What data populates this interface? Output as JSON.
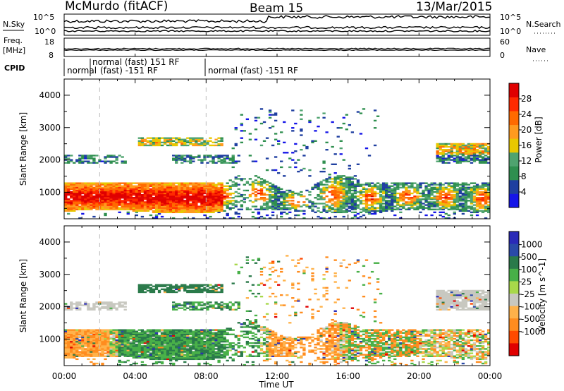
{
  "header": {
    "station": "McMurdo (fitACF)",
    "beam": "Beam 15",
    "date": "13/Mar/2015"
  },
  "params": {
    "nsky_label": "N.Sky",
    "nsky_ticks": [
      "10^5",
      "10^0"
    ],
    "nsearch_label": "N.Search",
    "nsearch_ticks": [
      "10^5",
      "10^0"
    ],
    "freq_label_line1": "Freq.",
    "freq_label_line2": "[MHz]",
    "freq_ticks": [
      "18",
      "8"
    ],
    "nave_label": "Nave",
    "nave_ticks": [
      "60",
      "0"
    ],
    "cpid_label": "CPID",
    "cpid_segments": [
      {
        "text": "normal"
      },
      {
        "text": "normal (fast) 151 RF"
      },
      {
        "text": "(fast) -151 RF"
      },
      {
        "text": "normal (fast) -151 RF"
      }
    ]
  },
  "axes": {
    "x_label": "Time UT",
    "x_ticks": [
      "00:00",
      "04:00",
      "08:00",
      "12:00",
      "16:00",
      "20:00",
      "00:00"
    ],
    "y_label": "Slant Range [km]",
    "y_ticks": [
      "1000",
      "2000",
      "3000",
      "4000"
    ],
    "y_values": [
      1000,
      2000,
      3000,
      4000
    ],
    "x_range": [
      0,
      24
    ],
    "y_range": [
      180,
      4500
    ]
  },
  "colors": {
    "power": [
      "#1515e8",
      "#1f3fa0",
      "#2f8f4f",
      "#4fa36f",
      "#e8c800",
      "#ff9a1e",
      "#ff6a00",
      "#ff2a00",
      "#e00000"
    ],
    "velocity": [
      "#e00000",
      "#ff4a00",
      "#ff8c1e",
      "#ffb24a",
      "#c8c8c0",
      "#a8d84a",
      "#48b048",
      "#2a7a4a",
      "#2a4aa8",
      "#2a2ab8"
    ]
  },
  "chart_data": [
    {
      "type": "heatmap",
      "name": "power",
      "colorbar_label": "Power [dB]",
      "colorbar_ticks": [
        "4",
        "8",
        "12",
        "16",
        "20",
        "24",
        "28"
      ],
      "colorbar_values": [
        4,
        8,
        12,
        16,
        20,
        24,
        28
      ],
      "colorbar_range": [
        0,
        32
      ],
      "x_range": [
        0,
        24
      ],
      "y_range": [
        180,
        4500
      ]
    },
    {
      "type": "heatmap",
      "name": "velocity",
      "colorbar_label": "Velocity [m s^-1]",
      "colorbar_ticks": [
        "1000",
        "500",
        "100",
        "25",
        "-25",
        "-100",
        "-500",
        "-1000"
      ],
      "colorbar_range": [
        -1200,
        1200
      ],
      "x_range": [
        0,
        24
      ],
      "y_range": [
        180,
        4500
      ]
    }
  ]
}
